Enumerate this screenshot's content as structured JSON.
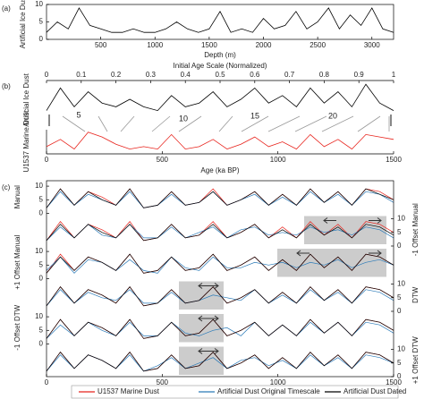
{
  "chart_data": [
    {
      "type": "line",
      "panel": "(a)",
      "ylabel": "Artificial Ice Dust",
      "xlabel": "Depth (m)",
      "xlim": [
        0,
        3200
      ],
      "xticks": [
        500,
        1000,
        1500,
        2000,
        2500,
        3000
      ],
      "ylim": [
        0,
        10
      ],
      "yticks": [
        0,
        5,
        10
      ],
      "x": [
        0,
        100,
        200,
        300,
        400,
        500,
        600,
        700,
        800,
        900,
        1000,
        1100,
        1200,
        1300,
        1400,
        1500,
        1600,
        1700,
        1800,
        1900,
        2000,
        2100,
        2200,
        2300,
        2400,
        2500,
        2600,
        2700,
        2800,
        2900,
        3000,
        3100,
        3200
      ],
      "series": [
        {
          "color": "#000000",
          "values": [
            2,
            5,
            3,
            9,
            4,
            3,
            2,
            2,
            3,
            2,
            2,
            3,
            5,
            3,
            2,
            3,
            8,
            2,
            3,
            2,
            6,
            3,
            4,
            8,
            3,
            5,
            9,
            3,
            7,
            4,
            9,
            3,
            2
          ]
        }
      ]
    },
    {
      "type": "line",
      "panel": "(b)",
      "ylabel": "Artificial Ice Dust",
      "x2label": "Initial Age Scale (Normalized)",
      "x2lim": [
        0,
        1
      ],
      "x2ticks": [
        0,
        0.1,
        0.2,
        0.3,
        0.4,
        0.5,
        0.6,
        0.7,
        0.8,
        0.9,
        1
      ],
      "xlim": [
        0,
        1500
      ],
      "ylim": [
        0,
        10
      ],
      "annotations": [
        "5",
        "10",
        "15",
        "20"
      ],
      "x": [
        0,
        60,
        120,
        180,
        240,
        300,
        360,
        420,
        480,
        540,
        600,
        660,
        720,
        780,
        840,
        900,
        960,
        1020,
        1080,
        1140,
        1200,
        1260,
        1320,
        1380,
        1440,
        1500
      ],
      "series": [
        {
          "color": "#000000",
          "values": [
            2,
            8,
            3,
            7,
            4,
            3,
            5,
            3,
            2,
            6,
            3,
            4,
            7,
            3,
            5,
            8,
            4,
            6,
            3,
            8,
            4,
            7,
            3,
            9,
            4,
            2
          ]
        }
      ]
    },
    {
      "type": "line",
      "ylabel": "U1537 Marine Dust",
      "xlabel": "Age (ka BP)",
      "xlim": [
        0,
        1500
      ],
      "xticks": [
        0,
        500,
        1000,
        1500
      ],
      "ylim": [
        0,
        10
      ],
      "x": [
        0,
        60,
        120,
        180,
        240,
        300,
        360,
        420,
        480,
        540,
        600,
        660,
        720,
        780,
        840,
        900,
        960,
        1020,
        1080,
        1140,
        1200,
        1260,
        1320,
        1380,
        1440,
        1500
      ],
      "series": [
        {
          "color": "#e8231c",
          "values": [
            3,
            6,
            2,
            9,
            7,
            4,
            2,
            3,
            2,
            8,
            2,
            3,
            6,
            2,
            4,
            7,
            3,
            5,
            2,
            8,
            3,
            6,
            2,
            8,
            7,
            6
          ]
        }
      ]
    },
    {
      "type": "line-rows",
      "panel": "(c)",
      "xlim": [
        0,
        1500
      ],
      "xticks": [
        0,
        500,
        1000,
        1500
      ],
      "ylim": [
        0,
        12
      ],
      "yticks": [
        0,
        5,
        10
      ],
      "left_labels": [
        "Manual",
        "+1 Offset Manual",
        "-1 Offset DTW"
      ],
      "right_labels": [
        "-1 Offset Manual",
        "DTW",
        "+1 Offset DTW"
      ],
      "x": [
        0,
        60,
        120,
        180,
        240,
        300,
        360,
        420,
        480,
        540,
        600,
        660,
        720,
        780,
        840,
        900,
        960,
        1020,
        1080,
        1140,
        1200,
        1260,
        1320,
        1380,
        1440,
        1500
      ],
      "series": [
        {
          "name": "U1537 Marine Dust",
          "color": "#e8231c",
          "values": [
            2,
            9,
            3,
            8,
            6,
            3,
            9,
            2,
            3,
            8,
            3,
            4,
            9,
            3,
            5,
            8,
            3,
            7,
            3,
            9,
            4,
            8,
            3,
            9,
            8,
            5
          ]
        },
        {
          "name": "Artificial Dust Original Timescale",
          "color": "#2a7ab8"
        },
        {
          "name": "Artificial Dust Dated",
          "color": "#000000"
        }
      ],
      "rows": [
        {
          "blue": [
            2,
            8,
            3,
            7,
            5,
            3,
            8,
            2,
            3,
            7,
            3,
            4,
            8,
            3,
            5,
            7,
            3,
            6,
            3,
            8,
            4,
            7,
            3,
            8,
            7,
            4
          ],
          "black": [
            2,
            9,
            3,
            8,
            5,
            3,
            9,
            2,
            3,
            8,
            3,
            4,
            8,
            3,
            5,
            8,
            3,
            7,
            3,
            9,
            4,
            8,
            3,
            9,
            7,
            5
          ]
        },
        {
          "blue": [
            2,
            7,
            3,
            8,
            4,
            3,
            8,
            3,
            3,
            7,
            3,
            5,
            7,
            3,
            6,
            7,
            4,
            5,
            4,
            7,
            5,
            6,
            4,
            7,
            6,
            3
          ],
          "black": [
            2,
            8,
            3,
            8,
            5,
            3,
            8,
            2,
            3,
            8,
            3,
            4,
            8,
            3,
            5,
            8,
            3,
            6,
            3,
            8,
            4,
            7,
            3,
            8,
            7,
            4
          ]
        },
        {
          "blue": [
            3,
            8,
            2,
            7,
            6,
            3,
            7,
            3,
            2,
            8,
            4,
            3,
            8,
            4,
            4,
            6,
            5,
            6,
            4,
            6,
            5,
            7,
            4,
            6,
            7,
            5
          ],
          "black": [
            2,
            8,
            3,
            8,
            6,
            3,
            9,
            2,
            3,
            8,
            3,
            4,
            9,
            3,
            5,
            8,
            3,
            7,
            3,
            9,
            4,
            8,
            3,
            9,
            8,
            5
          ]
        },
        {
          "blue": [
            2,
            8,
            3,
            7,
            5,
            4,
            8,
            3,
            3,
            7,
            3,
            4,
            6,
            5,
            4,
            8,
            3,
            6,
            3,
            8,
            4,
            7,
            3,
            8,
            7,
            4
          ],
          "black": [
            2,
            9,
            3,
            8,
            6,
            3,
            9,
            2,
            3,
            8,
            3,
            4,
            9,
            3,
            5,
            8,
            3,
            7,
            3,
            9,
            4,
            8,
            3,
            9,
            8,
            5
          ]
        },
        {
          "blue": [
            2,
            7,
            3,
            8,
            5,
            3,
            8,
            3,
            3,
            8,
            4,
            3,
            5,
            6,
            3,
            8,
            3,
            7,
            3,
            8,
            4,
            8,
            3,
            8,
            7,
            4
          ],
          "black": [
            2,
            9,
            3,
            8,
            6,
            3,
            9,
            2,
            3,
            8,
            3,
            4,
            9,
            3,
            5,
            8,
            3,
            7,
            3,
            9,
            4,
            8,
            3,
            9,
            8,
            5
          ]
        },
        {
          "blue": [
            2,
            8,
            3,
            8,
            6,
            3,
            8,
            2,
            4,
            7,
            3,
            5,
            7,
            3,
            6,
            7,
            4,
            6,
            3,
            8,
            4,
            7,
            3,
            8,
            7,
            5
          ],
          "black": [
            2,
            9,
            3,
            8,
            6,
            3,
            9,
            2,
            3,
            8,
            3,
            4,
            9,
            3,
            5,
            8,
            3,
            7,
            3,
            9,
            4,
            8,
            3,
            9,
            8,
            5
          ]
        }
      ]
    }
  ]
}
